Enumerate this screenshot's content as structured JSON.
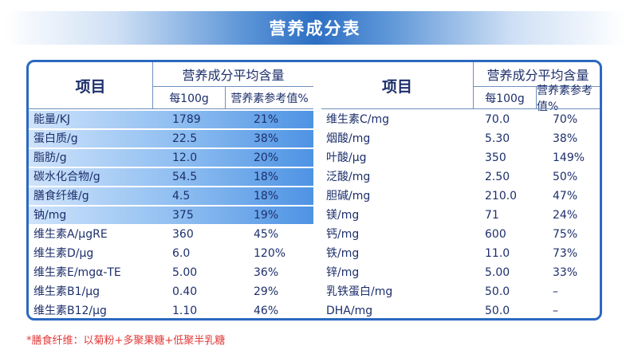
{
  "title": "营养成分表",
  "header": {
    "item": "项目",
    "group": "营养成分平均含量",
    "per100": "每100g",
    "nrv": "营养素参考值%"
  },
  "left_rows": [
    {
      "name": "能量/KJ",
      "per100": "1789",
      "nrv": "21%",
      "highlight": true
    },
    {
      "name": "蛋白质/g",
      "per100": "22.5",
      "nrv": "38%",
      "highlight": true
    },
    {
      "name": "脂肪/g",
      "per100": "12.0",
      "nrv": "20%",
      "highlight": true
    },
    {
      "name": "碳水化合物/g",
      "per100": "54.5",
      "nrv": "18%",
      "highlight": true
    },
    {
      "name": "膳食纤维/g",
      "per100": "4.5",
      "nrv": "18%",
      "highlight": true
    },
    {
      "name": "钠/mg",
      "per100": "375",
      "nrv": "19%",
      "highlight": true
    },
    {
      "name": "维生素A/μgRE",
      "per100": "360",
      "nrv": "45%",
      "highlight": false
    },
    {
      "name": "维生素D/μg",
      "per100": "6.0",
      "nrv": "120%",
      "highlight": false
    },
    {
      "name": "维生素E/mgα-TE",
      "per100": "5.00",
      "nrv": "36%",
      "highlight": false
    },
    {
      "name": "维生素B1/μg",
      "per100": "0.40",
      "nrv": "29%",
      "highlight": false
    },
    {
      "name": "维生素B12/μg",
      "per100": "1.10",
      "nrv": "46%",
      "highlight": false
    }
  ],
  "right_rows": [
    {
      "name": "维生素C/mg",
      "per100": "70.0",
      "nrv": "70%"
    },
    {
      "name": "烟酸/mg",
      "per100": "5.30",
      "nrv": "38%"
    },
    {
      "name": "叶酸/μg",
      "per100": "350",
      "nrv": "149%"
    },
    {
      "name": "泛酸/mg",
      "per100": "2.50",
      "nrv": "50%"
    },
    {
      "name": "胆碱/mg",
      "per100": "210.0",
      "nrv": "47%"
    },
    {
      "name": "镁/mg",
      "per100": "71",
      "nrv": "24%"
    },
    {
      "name": "钙/mg",
      "per100": "600",
      "nrv": "75%"
    },
    {
      "name": "铁/mg",
      "per100": "11.0",
      "nrv": "73%"
    },
    {
      "name": "锌/mg",
      "per100": "5.00",
      "nrv": "33%"
    },
    {
      "name": "乳铁蛋白/mg",
      "per100": "50.0",
      "nrv": "–"
    },
    {
      "name": "DHA/mg",
      "per100": "50.0",
      "nrv": "–"
    }
  ],
  "footnote": "*膳食纤维：以菊粉+多聚果糖+低聚半乳糖",
  "colors": {
    "frame": "#2b69bf",
    "text": "#1d2f6b",
    "highlight_light": "#cfe3fb",
    "highlight_dark": "#4e93e4",
    "footnote": "#e23a3a"
  }
}
